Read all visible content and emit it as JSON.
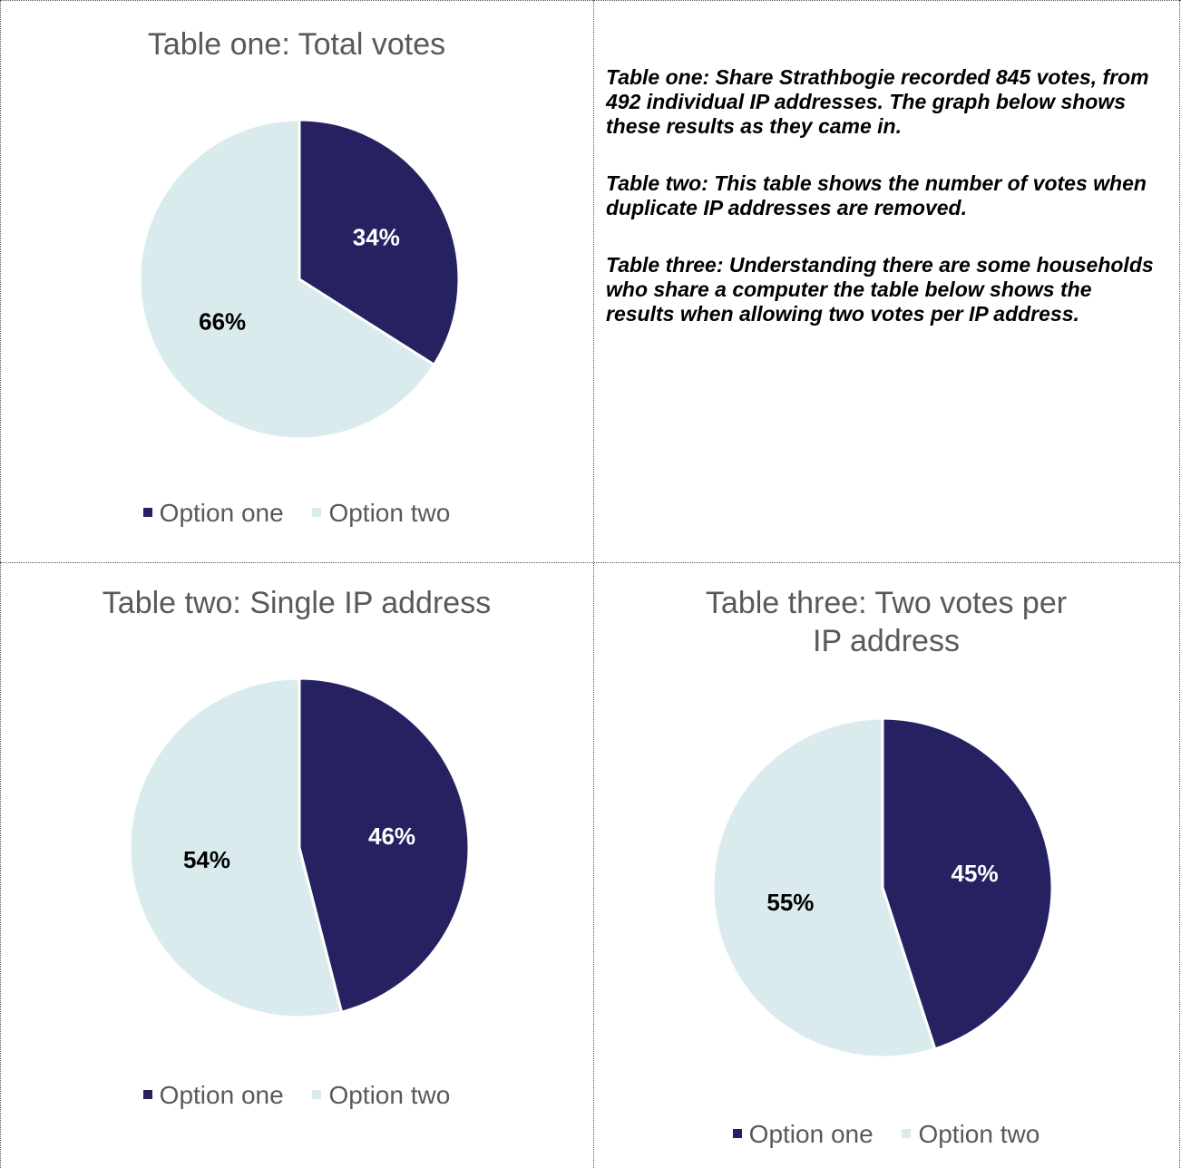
{
  "colors": {
    "option_one": "#262262",
    "option_two": "#DAEBEE",
    "label_on_dark": "#ffffff",
    "label_on_light": "#000000"
  },
  "legend": {
    "option_one": "Option one",
    "option_two": "Option two"
  },
  "notes": [
    "Table one: Share Strathbogie recorded 845 votes, from 492 individual IP addresses.  The graph below shows these results as they came in.",
    "Table two: This table shows the number of votes when duplicate IP addresses are removed.",
    "Table three: Understanding there are some households who share a computer the table below shows the results when allowing two votes per IP address."
  ],
  "chart_data": [
    {
      "type": "pie",
      "title": "Table one: Total votes",
      "categories": [
        "Option one",
        "Option two"
      ],
      "values": [
        34,
        66
      ],
      "labels": [
        "34%",
        "66%"
      ],
      "legend_position": "bottom"
    },
    {
      "type": "pie",
      "title": "Table two: Single IP address",
      "categories": [
        "Option one",
        "Option two"
      ],
      "values": [
        46,
        54
      ],
      "labels": [
        "46%",
        "54%"
      ],
      "legend_position": "bottom"
    },
    {
      "type": "pie",
      "title_lines": [
        "Table three: Two votes per",
        "IP address"
      ],
      "categories": [
        "Option one",
        "Option two"
      ],
      "values": [
        45,
        55
      ],
      "labels": [
        "45%",
        "55%"
      ],
      "legend_position": "bottom"
    }
  ]
}
